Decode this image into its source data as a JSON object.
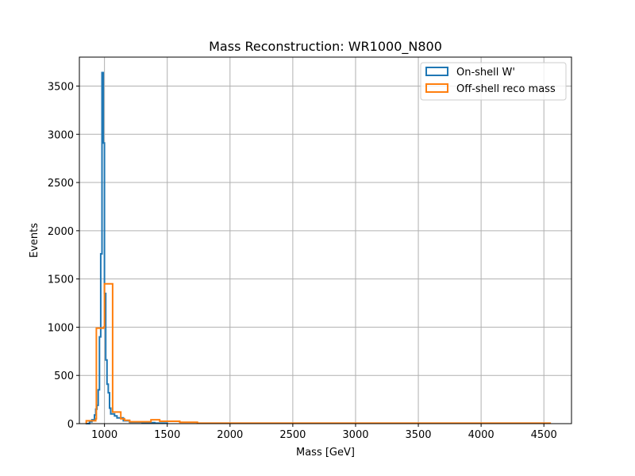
{
  "chart_data": {
    "type": "histogram",
    "title": "Mass Reconstruction: WR1000_N800",
    "xlabel": "Mass [GeV]",
    "ylabel": "Events",
    "xlim": [
      800,
      4720
    ],
    "ylim": [
      0,
      3800
    ],
    "xticks": [
      1000,
      1500,
      2000,
      2500,
      3000,
      3500,
      4000,
      4500
    ],
    "yticks": [
      0,
      500,
      1000,
      1500,
      2000,
      2500,
      3000,
      3500
    ],
    "grid": true,
    "legend_position": "top-right",
    "series": [
      {
        "name": "On-shell W'",
        "color": "#1f77b4",
        "step": [
          [
            850,
            0
          ],
          [
            880,
            20
          ],
          [
            900,
            40
          ],
          [
            920,
            90
          ],
          [
            930,
            150
          ],
          [
            940,
            190
          ],
          [
            950,
            350
          ],
          [
            960,
            900
          ],
          [
            970,
            1760
          ],
          [
            980,
            3640
          ],
          [
            990,
            2910
          ],
          [
            1000,
            1350
          ],
          [
            1010,
            660
          ],
          [
            1020,
            410
          ],
          [
            1030,
            320
          ],
          [
            1040,
            160
          ],
          [
            1050,
            100
          ],
          [
            1080,
            80
          ],
          [
            1100,
            60
          ],
          [
            1150,
            30
          ],
          [
            1200,
            15
          ],
          [
            1300,
            10
          ],
          [
            1400,
            5
          ],
          [
            1500,
            0
          ]
        ]
      },
      {
        "name": "Off-shell reco mass",
        "color": "#ff7f0e",
        "step": [
          [
            855,
            0
          ],
          [
            855,
            30
          ],
          [
            930,
            50
          ],
          [
            935,
            990
          ],
          [
            993,
            1000
          ],
          [
            1000,
            1450
          ],
          [
            1065,
            120
          ],
          [
            1130,
            50
          ],
          [
            1160,
            35
          ],
          [
            1200,
            20
          ],
          [
            1300,
            20
          ],
          [
            1370,
            40
          ],
          [
            1440,
            25
          ],
          [
            1600,
            15
          ],
          [
            1740,
            5
          ],
          [
            1900,
            5
          ],
          [
            4550,
            0
          ]
        ]
      }
    ]
  }
}
